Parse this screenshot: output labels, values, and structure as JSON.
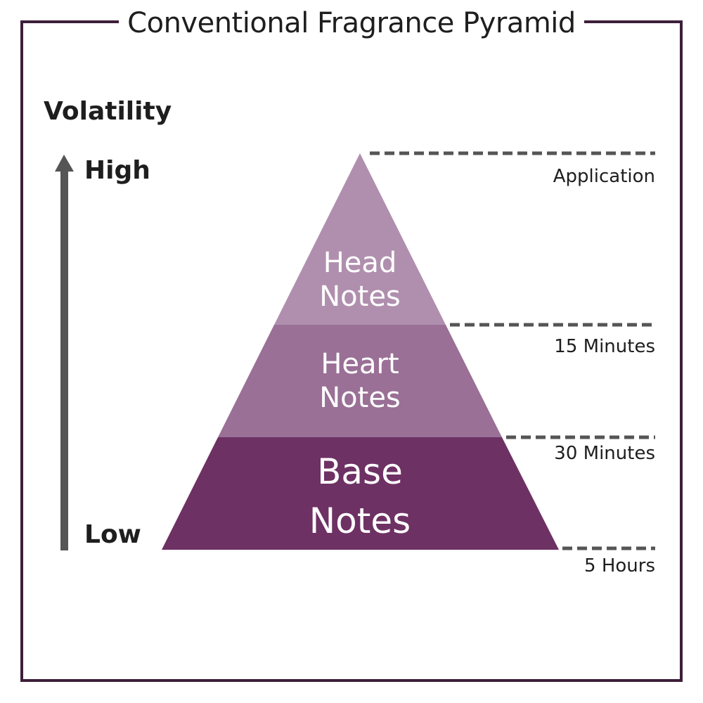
{
  "title": "Conventional Fragrance Pyramid",
  "axis": {
    "label": "Volatility",
    "high": "High",
    "low": "Low",
    "arrow_icon": "up-arrow-icon"
  },
  "layers": [
    {
      "line1": "Head",
      "line2": "Notes",
      "color": "#b08fae"
    },
    {
      "line1": "Heart",
      "line2": "Notes",
      "color": "#9a7096"
    },
    {
      "line1": "Base",
      "line2": "Notes",
      "color": "#6e3164"
    }
  ],
  "times": [
    "Application",
    "15 Minutes",
    "30 Minutes",
    "5 Hours"
  ],
  "colors": {
    "frame": "#3d1f3a",
    "dash": "#555555",
    "arrow": "#555555"
  }
}
